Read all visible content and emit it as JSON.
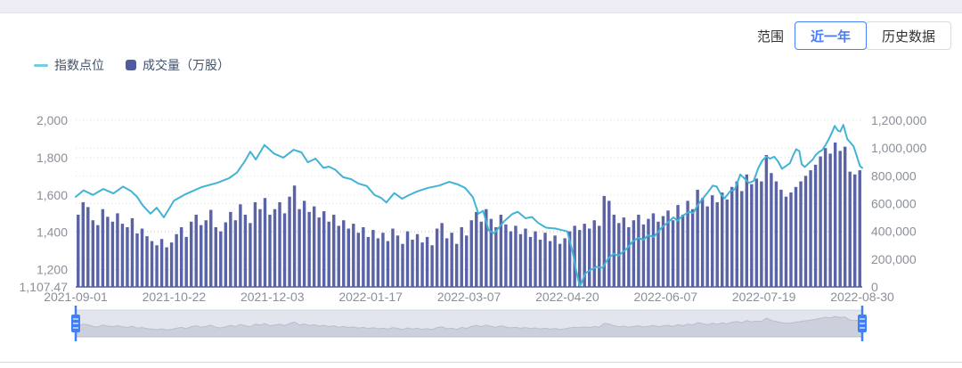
{
  "colors": {
    "accent_blue": "#4a7df8",
    "line_teal": "#41b4d5",
    "legend_line_teal": "#76cce4",
    "bar_indigo": "#5a63a6",
    "axis_line": "#565f9e",
    "axis_text": "#8a8f99",
    "gridline": "#dcdcdc",
    "slider_track": "#e2e5ee",
    "slider_silhouette": "#c9cedb",
    "slider_handle": "#3f7ff7",
    "top_strip": "#ededf3"
  },
  "range_selector": {
    "label": "范围",
    "options": [
      {
        "label": "近一年",
        "selected": true
      },
      {
        "label": "历史数据",
        "selected": false
      }
    ]
  },
  "legend": {
    "items": [
      {
        "label": "指数点位",
        "marker": "line"
      },
      {
        "label": "成交量（万股）",
        "marker": "square"
      }
    ]
  },
  "chart_data": {
    "type": "line+bar",
    "x_axis": {
      "tick_labels": [
        "2021-09-01",
        "2021-10-22",
        "2021-12-03",
        "2022-01-17",
        "2022-03-07",
        "2022-04-20",
        "2022-06-07",
        "2022-07-19",
        "2022-08-30"
      ]
    },
    "y_left": {
      "name": "指数点位",
      "min": 1107.47,
      "max": 2000,
      "ticks": [
        {
          "label": "2,000",
          "value": 2000
        },
        {
          "label": "1,800",
          "value": 1800
        },
        {
          "label": "1,600",
          "value": 1600
        },
        {
          "label": "1,400",
          "value": 1400
        },
        {
          "label": "1,200",
          "value": 1200
        },
        {
          "label": "1,107.47",
          "value": 1107.47
        }
      ]
    },
    "y_right": {
      "name": "成交量（万股）",
      "min": 0,
      "max": 1200000,
      "ticks": [
        {
          "label": "1,200,000",
          "value": 1200000
        },
        {
          "label": "1,000,000",
          "value": 1000000
        },
        {
          "label": "800,000",
          "value": 800000
        },
        {
          "label": "600,000",
          "value": 600000
        },
        {
          "label": "400,000",
          "value": 400000
        },
        {
          "label": "200,000",
          "value": 200000
        },
        {
          "label": "0",
          "value": 0
        }
      ]
    },
    "series": [
      {
        "name": "指数点位",
        "type": "line",
        "axis": "left",
        "points_note": "each point is [fraction of x-range 2021-09-01..2022-08-30, index value]",
        "points": [
          [
            0,
            1590
          ],
          [
            0.01,
            1625
          ],
          [
            0.022,
            1600
          ],
          [
            0.035,
            1632
          ],
          [
            0.048,
            1608
          ],
          [
            0.06,
            1645
          ],
          [
            0.07,
            1622
          ],
          [
            0.078,
            1590
          ],
          [
            0.085,
            1545
          ],
          [
            0.095,
            1500
          ],
          [
            0.103,
            1532
          ],
          [
            0.112,
            1480
          ],
          [
            0.125,
            1570
          ],
          [
            0.14,
            1605
          ],
          [
            0.16,
            1642
          ],
          [
            0.18,
            1665
          ],
          [
            0.195,
            1690
          ],
          [
            0.205,
            1720
          ],
          [
            0.215,
            1780
          ],
          [
            0.222,
            1832
          ],
          [
            0.229,
            1790
          ],
          [
            0.24,
            1868
          ],
          [
            0.252,
            1822
          ],
          [
            0.264,
            1800
          ],
          [
            0.277,
            1842
          ],
          [
            0.287,
            1828
          ],
          [
            0.295,
            1775
          ],
          [
            0.305,
            1795
          ],
          [
            0.315,
            1745
          ],
          [
            0.322,
            1752
          ],
          [
            0.33,
            1735
          ],
          [
            0.34,
            1695
          ],
          [
            0.35,
            1685
          ],
          [
            0.36,
            1660
          ],
          [
            0.37,
            1648
          ],
          [
            0.38,
            1600
          ],
          [
            0.388,
            1585
          ],
          [
            0.395,
            1560
          ],
          [
            0.405,
            1610
          ],
          [
            0.415,
            1580
          ],
          [
            0.425,
            1602
          ],
          [
            0.435,
            1620
          ],
          [
            0.448,
            1638
          ],
          [
            0.462,
            1650
          ],
          [
            0.475,
            1670
          ],
          [
            0.485,
            1658
          ],
          [
            0.495,
            1638
          ],
          [
            0.505,
            1588
          ],
          [
            0.512,
            1500
          ],
          [
            0.518,
            1515
          ],
          [
            0.525,
            1410
          ],
          [
            0.532,
            1395
          ],
          [
            0.545,
            1460
          ],
          [
            0.555,
            1498
          ],
          [
            0.562,
            1510
          ],
          [
            0.572,
            1475
          ],
          [
            0.58,
            1482
          ],
          [
            0.588,
            1450
          ],
          [
            0.598,
            1425
          ],
          [
            0.61,
            1420
          ],
          [
            0.618,
            1412
          ],
          [
            0.625,
            1405
          ],
          [
            0.632,
            1290
          ],
          [
            0.636,
            1200
          ],
          [
            0.641,
            1107.47
          ],
          [
            0.648,
            1180
          ],
          [
            0.655,
            1200
          ],
          [
            0.662,
            1215
          ],
          [
            0.67,
            1210
          ],
          [
            0.677,
            1260
          ],
          [
            0.684,
            1285
          ],
          [
            0.69,
            1275
          ],
          [
            0.7,
            1310
          ],
          [
            0.708,
            1350
          ],
          [
            0.715,
            1370
          ],
          [
            0.722,
            1360
          ],
          [
            0.728,
            1385
          ],
          [
            0.735,
            1375
          ],
          [
            0.745,
            1425
          ],
          [
            0.752,
            1450
          ],
          [
            0.76,
            1480
          ],
          [
            0.765,
            1462
          ],
          [
            0.772,
            1490
          ],
          [
            0.78,
            1510
          ],
          [
            0.785,
            1502
          ],
          [
            0.79,
            1540
          ],
          [
            0.797,
            1580
          ],
          [
            0.803,
            1610
          ],
          [
            0.81,
            1650
          ],
          [
            0.815,
            1645
          ],
          [
            0.82,
            1605
          ],
          [
            0.825,
            1582
          ],
          [
            0.832,
            1620
          ],
          [
            0.838,
            1630
          ],
          [
            0.845,
            1710
          ],
          [
            0.85,
            1690
          ],
          [
            0.856,
            1665
          ],
          [
            0.862,
            1675
          ],
          [
            0.868,
            1745
          ],
          [
            0.873,
            1785
          ],
          [
            0.878,
            1805
          ],
          [
            0.883,
            1795
          ],
          [
            0.888,
            1805
          ],
          [
            0.893,
            1780
          ],
          [
            0.898,
            1740
          ],
          [
            0.903,
            1755
          ],
          [
            0.908,
            1770
          ],
          [
            0.912,
            1810
          ],
          [
            0.916,
            1845
          ],
          [
            0.92,
            1835
          ],
          [
            0.923,
            1765
          ],
          [
            0.927,
            1750
          ],
          [
            0.932,
            1770
          ],
          [
            0.937,
            1790
          ],
          [
            0.941,
            1815
          ],
          [
            0.945,
            1830
          ],
          [
            0.949,
            1840
          ],
          [
            0.953,
            1865
          ],
          [
            0.957,
            1895
          ],
          [
            0.961,
            1930
          ],
          [
            0.965,
            1970
          ],
          [
            0.969,
            1945
          ],
          [
            0.972,
            1940
          ],
          [
            0.976,
            1975
          ],
          [
            0.981,
            1900
          ],
          [
            0.985,
            1880
          ],
          [
            0.989,
            1860
          ],
          [
            0.993,
            1810
          ],
          [
            0.997,
            1755
          ],
          [
            1,
            1745
          ]
        ]
      },
      {
        "name": "成交量（万股）",
        "type": "bar",
        "axis": "right",
        "values": [
          520000,
          610000,
          575000,
          480000,
          445000,
          560000,
          505000,
          470000,
          530000,
          455000,
          430000,
          495000,
          385000,
          420000,
          365000,
          330000,
          300000,
          345000,
          285000,
          320000,
          380000,
          430000,
          360000,
          470000,
          520000,
          445000,
          480000,
          555000,
          430000,
          400000,
          465000,
          540000,
          480000,
          595000,
          520000,
          460000,
          610000,
          560000,
          640000,
          520000,
          560000,
          610000,
          530000,
          650000,
          730000,
          560000,
          620000,
          540000,
          580000,
          500000,
          545000,
          470000,
          520000,
          440000,
          480000,
          420000,
          455000,
          390000,
          430000,
          360000,
          410000,
          350000,
          390000,
          330000,
          420000,
          370000,
          310000,
          400000,
          340000,
          380000,
          320000,
          360000,
          300000,
          420000,
          460000,
          350000,
          390000,
          310000,
          430000,
          370000,
          480000,
          540000,
          470000,
          560000,
          490000,
          430000,
          520000,
          450000,
          400000,
          440000,
          380000,
          420000,
          360000,
          400000,
          340000,
          390000,
          330000,
          370000,
          310000,
          350000,
          400000,
          440000,
          410000,
          455000,
          420000,
          480000,
          440000,
          655000,
          620000,
          520000,
          460000,
          500000,
          430000,
          480000,
          520000,
          450000,
          490000,
          530000,
          470000,
          510000,
          550000,
          480000,
          590000,
          520000,
          620000,
          560000,
          700000,
          640000,
          580000,
          660000,
          610000,
          680000,
          630000,
          720000,
          760000,
          690000,
          810000,
          740000,
          780000,
          760000,
          950000,
          820000,
          760000,
          700000,
          650000,
          680000,
          720000,
          760000,
          800000,
          840000,
          880000,
          940000,
          1000000,
          960000,
          1040000,
          980000,
          1010000,
          830000,
          810000,
          840000
        ]
      }
    ],
    "grid": {
      "dotted": true
    },
    "legend_position": "top-left"
  }
}
